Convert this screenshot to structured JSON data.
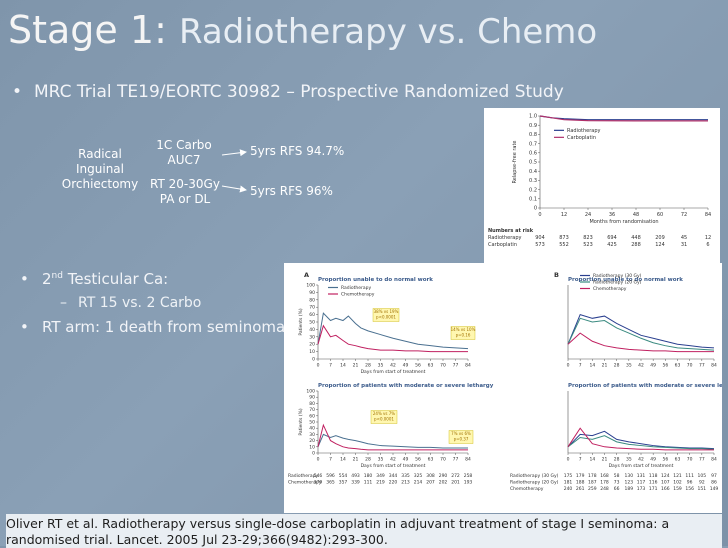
{
  "slide": {
    "title_main": "Stage 1:",
    "title_rest": "Radiotherapy vs. Chemo",
    "bullet1": "MRC Trial TE19/EORTC 30982 – Prospective Randomized Study",
    "bullet2_pre": "2",
    "bullet2_sup": "nd",
    "bullet2_post": " Testicular Ca:",
    "sub1": "RT 15 vs. 2 Carbo",
    "bullet3": "RT arm: 1 death from seminoma",
    "bullet_glyph": "•",
    "dash_glyph": "–",
    "citation": "Oliver RT et al. Radiotherapy versus single-dose carboplatin in adjuvant treatment of stage I seminoma: a randomised trial. Lancet. 2005 Jul 23-29;366(9482):293-300."
  },
  "flow": {
    "start": [
      "Radical",
      "Inguinal",
      "Orchiectomy"
    ],
    "arm1": [
      "1C Carbo",
      "AUC7"
    ],
    "arm2": [
      "RT 20-30Gy",
      "PA or DL"
    ],
    "out1": "5yrs RFS 94.7%",
    "out2": "5yrs RFS 96%"
  },
  "chart_data": [
    {
      "type": "line",
      "title": "",
      "ylabel": "Relapse-free rate",
      "xlabel": "Months from randomisation",
      "x_ticks": [
        0,
        12,
        24,
        36,
        48,
        60,
        72,
        84
      ],
      "y_ticks": [
        "0",
        "0.1",
        "0.2",
        "0.3",
        "0.4",
        "0.5",
        "0.6",
        "0.7",
        "0.8",
        "0.9",
        "1.0"
      ],
      "xlim": [
        0,
        84
      ],
      "ylim": [
        0,
        1.0
      ],
      "series": [
        {
          "name": "Radiotherapy",
          "color": "#2a3f8f",
          "x": [
            0,
            6,
            12,
            24,
            36,
            48,
            60,
            72,
            84
          ],
          "y": [
            1.0,
            0.98,
            0.97,
            0.96,
            0.96,
            0.96,
            0.96,
            0.96,
            0.96
          ]
        },
        {
          "name": "Carboplatin",
          "color": "#b0306a",
          "x": [
            0,
            6,
            12,
            24,
            36,
            48,
            60,
            72,
            84
          ],
          "y": [
            1.0,
            0.98,
            0.96,
            0.95,
            0.948,
            0.947,
            0.947,
            0.947,
            0.947
          ]
        }
      ],
      "risk_table": {
        "header": "Numbers at risk",
        "rows": [
          {
            "label": "Radiotherapy",
            "values": [
              "904",
              "873",
              "823",
              "694",
              "448",
              "209",
              "45",
              "12"
            ]
          },
          {
            "label": "Carboplatin",
            "values": [
              "573",
              "552",
              "523",
              "425",
              "288",
              "124",
              "31",
              "6"
            ]
          }
        ]
      }
    },
    {
      "type": "line",
      "panel_label": "A",
      "title": "Proportion unable to do normal work",
      "ylabel": "Patients (%)",
      "xlabel": "Days from start of treatment",
      "x_ticks": [
        0,
        7,
        14,
        21,
        28,
        35,
        42,
        49,
        56,
        63,
        70,
        77,
        84
      ],
      "y_ticks": [
        0,
        10,
        20,
        30,
        40,
        50,
        60,
        70,
        80,
        90,
        100
      ],
      "xlim": [
        0,
        84
      ],
      "ylim": [
        0,
        100
      ],
      "series": [
        {
          "name": "Radiotherapy",
          "color": "#4a7090",
          "x": [
            0,
            3,
            7,
            10,
            14,
            17,
            21,
            24,
            28,
            35,
            42,
            49,
            56,
            63,
            70,
            77,
            84
          ],
          "y": [
            20,
            62,
            52,
            55,
            52,
            58,
            48,
            42,
            38,
            33,
            28,
            24,
            20,
            18,
            16,
            15,
            14
          ]
        },
        {
          "name": "Chemotherapy",
          "color": "#c02060",
          "x": [
            0,
            3,
            7,
            10,
            14,
            17,
            21,
            24,
            28,
            35,
            42,
            49,
            56,
            63,
            70,
            77,
            84
          ],
          "y": [
            20,
            45,
            30,
            32,
            25,
            20,
            18,
            16,
            14,
            12,
            12,
            11,
            11,
            10,
            10,
            10,
            10
          ]
        }
      ],
      "annotations": [
        "38% vs 19%",
        "p<0.0001",
        "14% vs 10%",
        "p=0.16"
      ],
      "risk_table": {
        "header": "",
        "rows": [
          {
            "label": "",
            "values": []
          }
        ]
      }
    },
    {
      "type": "line",
      "title": "Proportion of patients with moderate or severe lethargy",
      "ylabel": "Patients (%)",
      "xlabel": "Days from start of treatment",
      "x_ticks": [
        0,
        7,
        14,
        21,
        28,
        35,
        42,
        49,
        56,
        63,
        70,
        77,
        84
      ],
      "y_ticks": [
        0,
        10,
        20,
        30,
        40,
        50,
        60,
        70,
        80,
        90,
        100
      ],
      "xlim": [
        0,
        84
      ],
      "ylim": [
        0,
        100
      ],
      "series": [
        {
          "name": "Radiotherapy",
          "color": "#4a7090",
          "x": [
            0,
            3,
            7,
            10,
            14,
            17,
            21,
            24,
            28,
            35,
            42,
            49,
            56,
            63,
            70,
            77,
            84
          ],
          "y": [
            10,
            30,
            25,
            28,
            24,
            22,
            20,
            18,
            15,
            12,
            11,
            10,
            9,
            9,
            8,
            8,
            8
          ]
        },
        {
          "name": "Chemotherapy",
          "color": "#c02060",
          "x": [
            0,
            3,
            7,
            10,
            14,
            17,
            21,
            24,
            28,
            35,
            42,
            49,
            56,
            63,
            70,
            77,
            84
          ],
          "y": [
            10,
            45,
            20,
            15,
            10,
            8,
            7,
            6,
            5,
            5,
            5,
            5,
            5,
            5,
            5,
            5,
            5
          ]
        }
      ],
      "annotations": [
        "24% vs 7%",
        "p<0.0001",
        "7% vs 6%",
        "p=0.37"
      ],
      "risk_table": {
        "header": "",
        "rows": [
          {
            "label": "Radiotherapy",
            "values": [
              "546",
              "596",
              "554",
              "493",
              "180",
              "349",
              "344",
              "335",
              "325",
              "308",
              "290",
              "272",
              "258"
            ]
          },
          {
            "label": "Chemotherapy",
            "values": [
              "379",
              "365",
              "357",
              "339",
              "111",
              "219",
              "220",
              "213",
              "214",
              "207",
              "202",
              "201",
              "193"
            ]
          }
        ]
      }
    },
    {
      "type": "line",
      "panel_label": "B",
      "title": "Proportion unable to do normal work",
      "ylabel": "",
      "xlabel": "",
      "x_ticks": [
        0,
        7,
        14,
        21,
        28,
        35,
        42,
        49,
        56,
        63,
        70,
        77,
        84
      ],
      "xlim": [
        0,
        84
      ],
      "ylim": [
        0,
        100
      ],
      "series": [
        {
          "name": "Radiotherapy (30 Gy)",
          "color": "#2a3f8f",
          "x": [
            0,
            7,
            14,
            21,
            28,
            35,
            42,
            49,
            56,
            63,
            70,
            77,
            84
          ],
          "y": [
            20,
            60,
            55,
            58,
            48,
            40,
            32,
            28,
            24,
            20,
            18,
            16,
            15
          ]
        },
        {
          "name": "Radiotherapy (20 Gy)",
          "color": "#3a8a80",
          "x": [
            0,
            7,
            14,
            21,
            28,
            35,
            42,
            49,
            56,
            63,
            70,
            77,
            84
          ],
          "y": [
            20,
            55,
            50,
            52,
            42,
            35,
            28,
            22,
            18,
            15,
            14,
            13,
            12
          ]
        },
        {
          "name": "Chemotherapy",
          "color": "#c02060",
          "x": [
            0,
            7,
            14,
            21,
            28,
            35,
            42,
            49,
            56,
            63,
            70,
            77,
            84
          ],
          "y": [
            20,
            35,
            24,
            18,
            15,
            13,
            12,
            11,
            11,
            10,
            10,
            10,
            10
          ]
        }
      ]
    },
    {
      "type": "line",
      "title": "Proportion of patients with moderate or severe lethargy",
      "ylabel": "",
      "xlabel": "Days from start of treatment",
      "x_ticks": [
        0,
        7,
        14,
        21,
        28,
        35,
        42,
        49,
        56,
        63,
        70,
        77,
        84
      ],
      "xlim": [
        0,
        84
      ],
      "ylim": [
        0,
        100
      ],
      "series": [
        {
          "name": "Radiotherapy (30 Gy)",
          "color": "#2a3f8f",
          "x": [
            0,
            7,
            14,
            21,
            28,
            35,
            42,
            49,
            56,
            63,
            70,
            77,
            84
          ],
          "y": [
            10,
            30,
            28,
            35,
            22,
            18,
            15,
            12,
            10,
            9,
            8,
            8,
            7
          ]
        },
        {
          "name": "Radiotherapy (20 Gy)",
          "color": "#3a8a80",
          "x": [
            0,
            7,
            14,
            21,
            28,
            35,
            42,
            49,
            56,
            63,
            70,
            77,
            84
          ],
          "y": [
            10,
            25,
            22,
            28,
            18,
            14,
            12,
            10,
            9,
            8,
            7,
            7,
            6
          ]
        },
        {
          "name": "Chemotherapy",
          "color": "#c02060",
          "x": [
            0,
            7,
            14,
            21,
            28,
            35,
            42,
            49,
            56,
            63,
            70,
            77,
            84
          ],
          "y": [
            10,
            40,
            15,
            10,
            8,
            7,
            6,
            6,
            5,
            5,
            5,
            5,
            5
          ]
        }
      ],
      "risk_table": {
        "header": "",
        "rows": [
          {
            "label": "Radiotherapy (30 Gy)",
            "values": [
              "175",
              "179",
              "178",
              "168",
              "58",
              "130",
              "131",
              "118",
              "124",
              "121",
              "111",
              "105",
              "97"
            ]
          },
          {
            "label": "Radiotherapy (20 Gy)",
            "values": [
              "181",
              "188",
              "187",
              "178",
              "73",
              "123",
              "117",
              "116",
              "107",
              "102",
              "96",
              "92",
              "86"
            ]
          },
          {
            "label": "Chemotherapy",
            "values": [
              "240",
              "261",
              "259",
              "248",
              "66",
              "189",
              "173",
              "171",
              "166",
              "159",
              "156",
              "151",
              "149"
            ]
          }
        ]
      }
    }
  ]
}
